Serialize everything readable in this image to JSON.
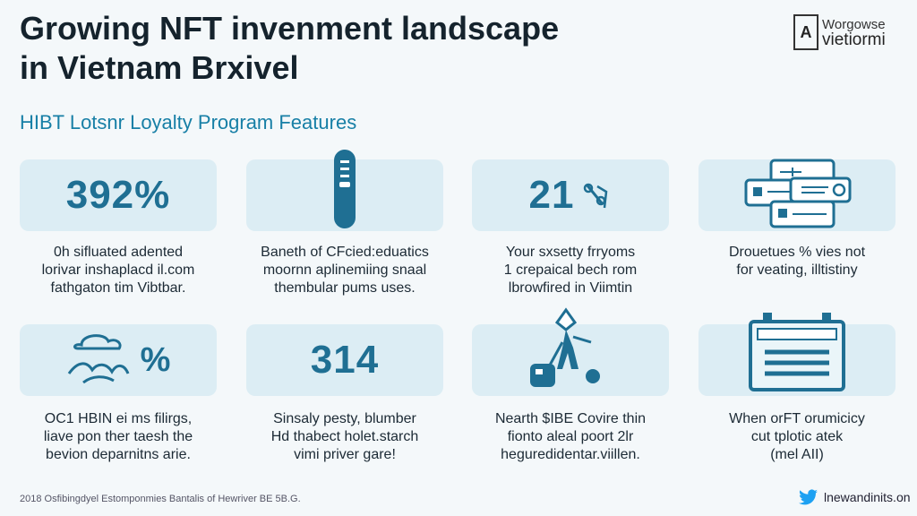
{
  "header": {
    "title_line1": "Growing NFT invenment landscape",
    "title_line2": "in Vietnam Brxivel",
    "brand_line1": "Worgowse",
    "brand_line2": "vietiormi"
  },
  "subtitle": "HIBT Lotsnr Loyalty Program Features",
  "cards": [
    {
      "stat": "392%",
      "icon": "",
      "desc": [
        "0h sifluated adented",
        "lorivar inshaplacd il.com",
        "fathgaton tim Vibtbar."
      ]
    },
    {
      "stat": "",
      "icon": "usb-stick-icon",
      "desc": [
        "Baneth of CFcied:eduatics",
        "moornn aplinemiing snaal",
        "thembular pums uses."
      ]
    },
    {
      "stat": "21",
      "icon": "lock-percent-icon",
      "desc": [
        "Your sxsetty frryoms",
        "1 crepaical bech rom",
        "lbrowfired in Viimtin"
      ]
    },
    {
      "stat": "",
      "icon": "dashboard-screens-icon",
      "desc": [
        "Drouetues % vies not",
        "for veating, illtistiny"
      ]
    },
    {
      "stat": "%",
      "icon": "cloud-mountains-icon",
      "desc": [
        "OC1 HBIN ei ms filirgs,",
        "liave pon ther taesh the",
        "bevion deparnitns arie."
      ]
    },
    {
      "stat": "314",
      "icon": "",
      "desc": [
        "Sinsaly pesty, blumber",
        "Hd thabect holet.starch",
        "vimi priver gare!"
      ]
    },
    {
      "stat": "",
      "icon": "figure-broom-icon",
      "desc": [
        "Nearth $IBE Covire thin",
        "fionto aleal poort 2lr",
        "heguredidentar.viillen."
      ]
    },
    {
      "stat": "",
      "icon": "battery-icon",
      "desc": [
        "When orFT orumicicy",
        "cut tplotic atek",
        "(mel AII)"
      ]
    }
  ],
  "footer": {
    "note": "2018 Osfibingdyel Estomponmies Bantalis of Hewriver BE 5B.G.",
    "twitter_handle": "lnewandinits.on"
  },
  "colors": {
    "accent": "#1f6f93",
    "card_bg": "#dcedf4",
    "subtitle": "#177fa6",
    "twitter": "#1da1f2"
  }
}
